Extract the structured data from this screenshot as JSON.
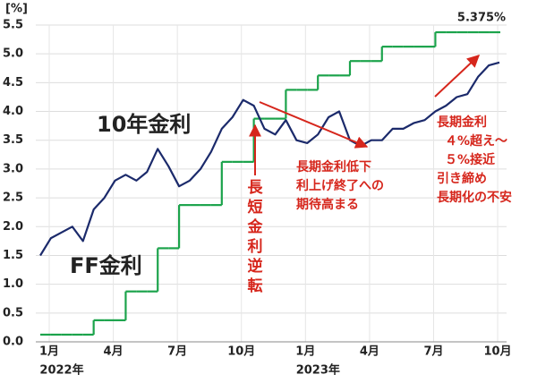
{
  "chart_data": {
    "type": "line",
    "unit_label": "[%]",
    "categories": [
      "1月",
      null,
      null,
      null,
      null,
      null,
      "4月",
      null,
      null,
      null,
      null,
      null,
      "7月",
      null,
      null,
      null,
      null,
      null,
      "10月",
      null,
      null,
      null,
      null,
      null,
      "1月",
      null,
      null,
      null,
      null,
      null,
      "4月",
      null,
      null,
      null,
      null,
      null,
      "7月",
      null,
      null,
      null,
      null,
      null,
      "10月",
      null
    ],
    "year_labels": [
      "2022年",
      "2023年"
    ],
    "series": [
      {
        "name": "10年金利",
        "color": "#1b2a6b",
        "values": [
          1.5,
          1.8,
          1.9,
          2.0,
          1.75,
          2.3,
          2.5,
          2.8,
          2.9,
          2.8,
          2.95,
          3.35,
          3.05,
          2.7,
          2.8,
          3.0,
          3.3,
          3.7,
          3.9,
          4.2,
          4.1,
          3.7,
          3.6,
          3.85,
          3.5,
          3.45,
          3.6,
          3.9,
          4.0,
          3.5,
          3.4,
          3.5,
          3.5,
          3.7,
          3.7,
          3.8,
          3.85,
          4.0,
          4.1,
          4.25,
          4.3,
          4.6,
          4.8,
          4.85
        ]
      },
      {
        "name": "FF金利",
        "color": "#1ba34b",
        "step": true,
        "end_label": "5.375%",
        "values": [
          0.125,
          0.125,
          0.125,
          0.125,
          0.125,
          0.375,
          0.375,
          0.375,
          0.875,
          0.875,
          0.875,
          1.625,
          1.625,
          2.375,
          2.375,
          2.375,
          2.375,
          3.125,
          3.125,
          3.125,
          3.875,
          3.875,
          3.875,
          4.375,
          4.375,
          4.375,
          4.625,
          4.625,
          4.625,
          4.875,
          4.875,
          4.875,
          5.125,
          5.125,
          5.125,
          5.125,
          5.125,
          5.375,
          5.375,
          5.375,
          5.375,
          5.375,
          5.375,
          5.375
        ]
      }
    ],
    "ylim": [
      0,
      5.5
    ],
    "yticks": [
      {
        "value": 0,
        "label": "0.0"
      },
      0.5,
      {
        "value": 1,
        "label": "1.0"
      },
      1.5,
      {
        "value": 2,
        "label": "2.0"
      },
      2.5,
      {
        "value": 3,
        "label": "3.0"
      },
      3.5,
      {
        "value": 4,
        "label": "4.0"
      },
      4.5,
      {
        "value": 5,
        "label": "5.0"
      },
      5.5
    ],
    "grid": true,
    "annotations": {
      "inversion": [
        "長",
        "短",
        "金",
        "利",
        "逆",
        "転"
      ],
      "fall": [
        "長期金利低下",
        "利上げ終了への",
        "期待高まる"
      ],
      "rise": [
        "長期金利",
        "４%超え～",
        "５%接近",
        "引き締め",
        "長期化の不安"
      ]
    }
  }
}
